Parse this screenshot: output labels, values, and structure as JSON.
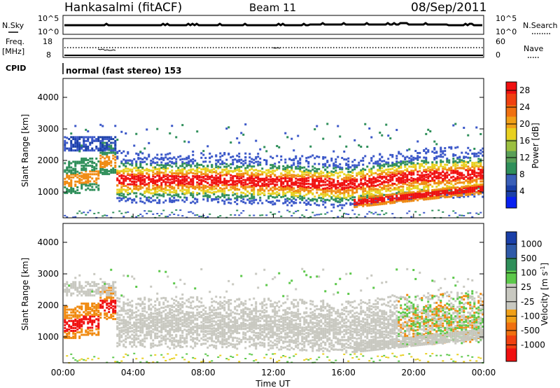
{
  "header": {
    "title": "Hankasalmi (fitACF)",
    "beam": "Beam 11",
    "date": "08/Sep/2011"
  },
  "top_panels": {
    "nsky_label": "N.Sky",
    "nsky_hi": "10^5",
    "nsky_lo": "10^0",
    "nsearch_label": "N.Search",
    "nsearch_hi": "10^5",
    "nsearch_lo": "10^0",
    "freq_label": "Freq.",
    "freq_unit": "[MHz]",
    "freq_hi": "18",
    "freq_lo": "8",
    "nave_label": "Nave",
    "nave_hi": "60",
    "nave_lo": "0",
    "cpid_label": "CPID",
    "cpid_text": "normal (fast stereo) 153"
  },
  "colors": {
    "dark_blue": "#1a3fa8",
    "blue": "#3a57c8",
    "green": "#2f8f5a",
    "light_green": "#5cc84a",
    "yellow": "#e8d020",
    "orange": "#f08a10",
    "red": "#f01010",
    "grey": "#c8c8c0"
  },
  "chart_data": [
    {
      "type": "heatmap",
      "title": "",
      "xlabel": "",
      "ylabel": "Slant Range [km]",
      "xlim": [
        "00:00",
        "24:00"
      ],
      "ylim": [
        180,
        4600
      ],
      "yticks": [
        "1000",
        "2000",
        "3000",
        "4000"
      ],
      "colorbar": {
        "label": "Power [dB]",
        "ticks": [
          "4",
          "8",
          "12",
          "16",
          "20",
          "24",
          "28"
        ],
        "range": [
          0,
          30
        ]
      },
      "bands": [
        {
          "name": "main echo band",
          "x_hours": [
            0.0,
            4.0,
            8.0,
            12.0,
            16.0,
            20.0,
            24.0
          ],
          "range_km": [
            1500,
            1400,
            1400,
            1350,
            1250,
            1500,
            1600
          ],
          "power_db": 28
        },
        {
          "name": "lower near-range band",
          "x_hours": [
            16.5,
            24.0
          ],
          "range_km": [
            700,
            1150
          ],
          "power_db": 28
        },
        {
          "name": "far-range patches",
          "x_hours": [
            0.0,
            24.0
          ],
          "range_km": [
            2500,
            3000
          ],
          "power_db": 6
        }
      ]
    },
    {
      "type": "heatmap",
      "title": "",
      "xlabel": "Time UT",
      "ylabel": "Slant Range [km]",
      "xlim": [
        "00:00",
        "24:00"
      ],
      "xticks": [
        "00:00",
        "04:00",
        "08:00",
        "12:00",
        "16:00",
        "20:00",
        "00:00"
      ],
      "ylim": [
        180,
        4600
      ],
      "yticks": [
        "1000",
        "2000",
        "3000",
        "4000"
      ],
      "colorbar": {
        "label": "Velocity [m s^-1]",
        "ticks": [
          "1000",
          "500",
          "100",
          "25",
          "-25",
          "-100",
          "-500",
          "-1000"
        ]
      },
      "bands": [
        {
          "name": "ground scatter band",
          "x_hours": [
            3.0,
            24.0
          ],
          "range_km": [
            1500,
            1300
          ],
          "velocity": 0
        },
        {
          "name": "early ionospheric echoes",
          "x_hours": [
            0.0,
            3.0
          ],
          "range_km": [
            1500,
            1500
          ],
          "velocity": -300
        },
        {
          "name": "late ionospheric echoes",
          "x_hours": [
            19.0,
            24.0
          ],
          "range_km": [
            1600,
            1600
          ],
          "velocity": -200
        }
      ]
    }
  ]
}
